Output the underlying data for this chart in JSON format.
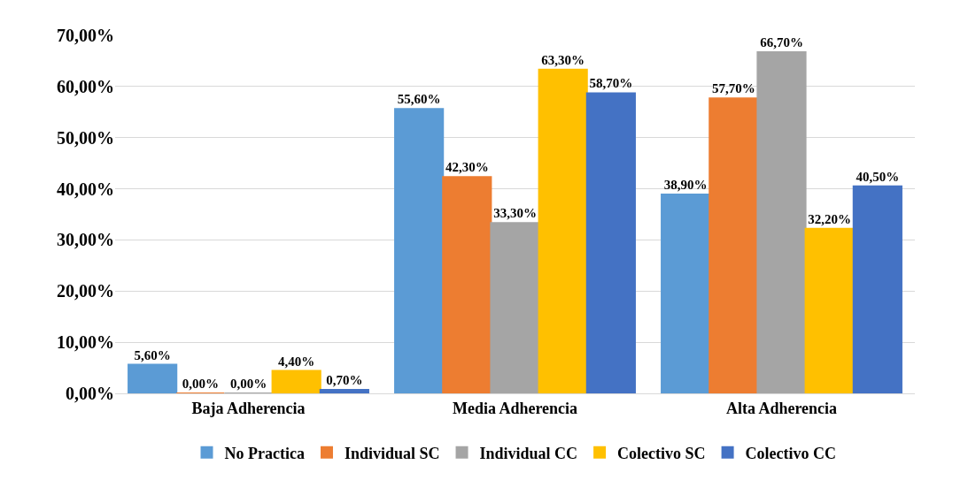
{
  "chart_data": {
    "type": "bar",
    "categories": [
      "Baja Adherencia",
      "Media Adherencia",
      "Alta Adherencia"
    ],
    "series": [
      {
        "name": "No Practica",
        "color": "#5b9bd5",
        "values": [
          5.6,
          55.6,
          38.9
        ],
        "value_labels": [
          "5,60%",
          "55,60%",
          "38,90%"
        ]
      },
      {
        "name": "Individual SC",
        "color": "#ed7d31",
        "values": [
          0,
          42.3,
          57.7
        ],
        "value_labels": [
          "0,00%",
          "42,30%",
          "57,70%"
        ]
      },
      {
        "name": "Individual CC",
        "color": "#a5a5a5",
        "values": [
          0,
          33.3,
          66.7
        ],
        "value_labels": [
          "0,00%",
          "33,30%",
          "66,70%"
        ]
      },
      {
        "name": "Colectivo SC",
        "color": "#ffc000",
        "values": [
          4.4,
          63.3,
          32.2
        ],
        "value_labels": [
          "4,40%",
          "63,30%",
          "32,20%"
        ]
      },
      {
        "name": "Colectivo CC",
        "color": "#4472c4",
        "values": [
          0.7,
          58.7,
          40.5
        ],
        "value_labels": [
          "0,70%",
          "58,70%",
          "40,50%"
        ]
      }
    ],
    "ylim": [
      0,
      70
    ],
    "yticks": [
      {
        "value": 0,
        "label": "0,00%"
      },
      {
        "value": 10,
        "label": "10,00%"
      },
      {
        "value": 20,
        "label": "20,00%"
      },
      {
        "value": 30,
        "label": "30,00%"
      },
      {
        "value": 40,
        "label": "40,00%"
      },
      {
        "value": 50,
        "label": "50,00%"
      },
      {
        "value": 60,
        "label": "60,00%"
      },
      {
        "value": 70,
        "label": "70,00%"
      }
    ],
    "grid": "y",
    "legend": "bottom"
  }
}
